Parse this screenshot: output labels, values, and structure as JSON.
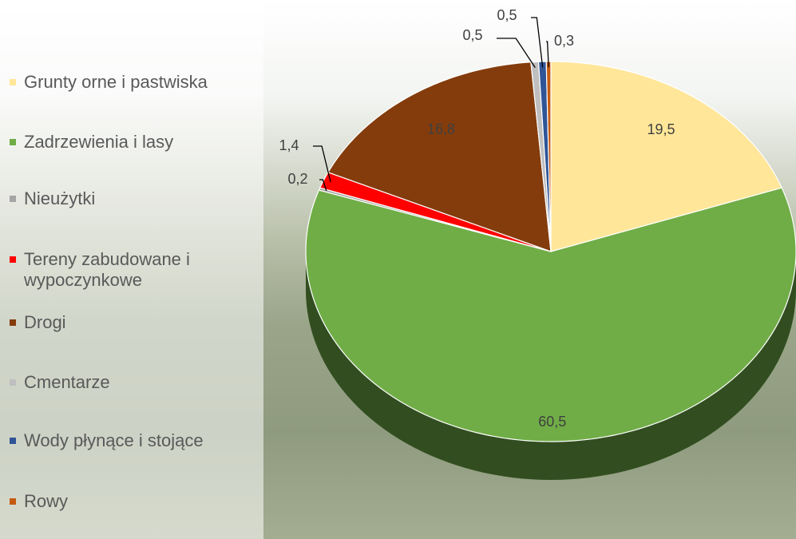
{
  "chart_data": {
    "type": "pie",
    "categories": [
      "Grunty orne i pastwiska",
      "Zadrzewienia i lasy",
      "Nieużytki",
      "Tereny zabudowane i wypoczynkowe",
      "Drogi",
      "Cmentarze",
      "Wody płynące i stojące",
      "Rowy"
    ],
    "values": [
      19.5,
      60.5,
      0.2,
      1.4,
      16.8,
      0.5,
      0.5,
      0.3
    ],
    "value_labels": [
      "19,5",
      "60,5",
      "0,2",
      "1,4",
      "16,8",
      "0,5",
      "0,5",
      "0,3"
    ],
    "colors": [
      "#ffe699",
      "#70ad47",
      "#a5a5a5",
      "#ff0000",
      "#843c0c",
      "#bfbfbf",
      "#2f5597",
      "#c55a11"
    ],
    "legend": "left"
  }
}
